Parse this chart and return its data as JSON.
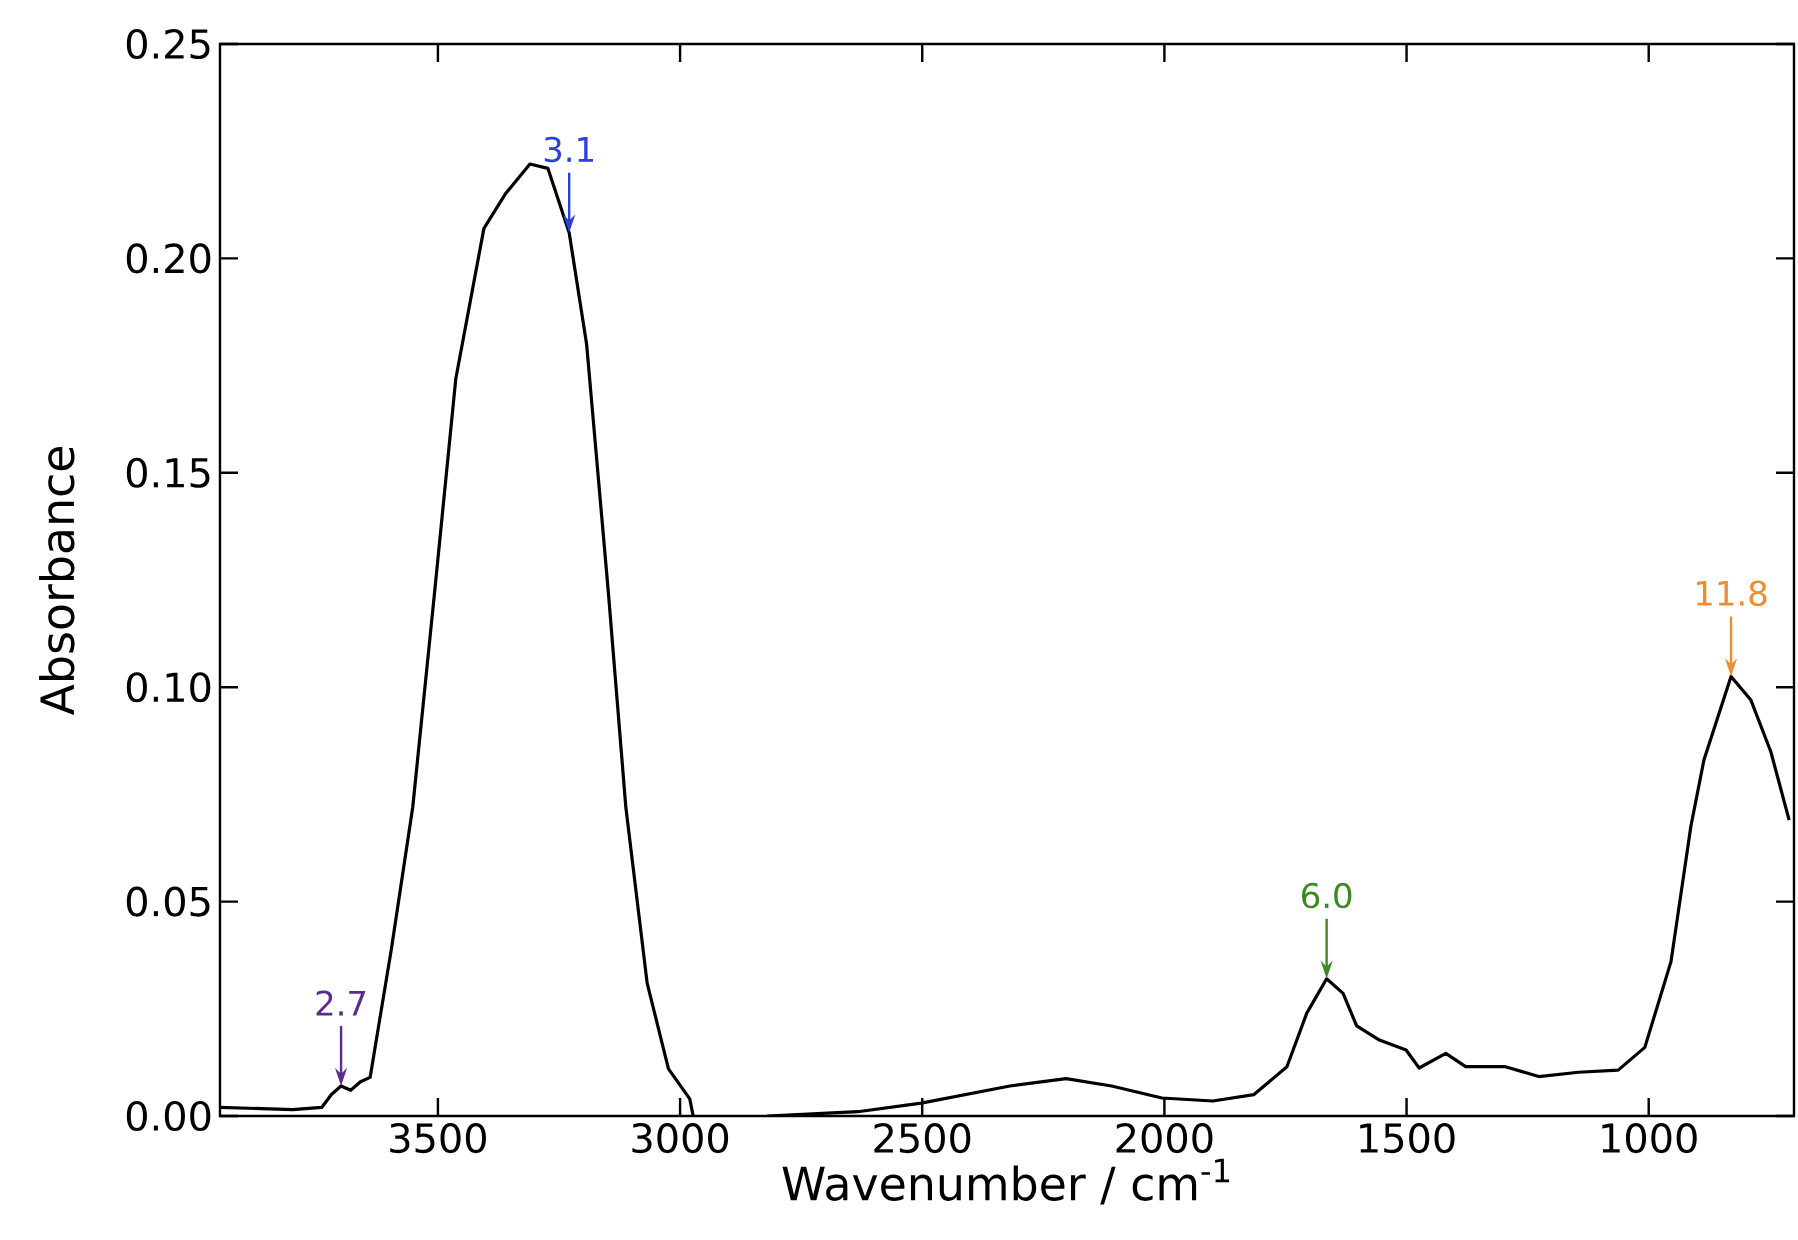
{
  "chart_data": {
    "type": "line",
    "xlabel": "Wavenumber / cm$^{-1}$",
    "ylabel": "Absorbance",
    "xlim": [
      3950,
      700
    ],
    "ylim": [
      0,
      0.25
    ],
    "xticks": [
      3500,
      3000,
      2500,
      2000,
      1500,
      1000
    ],
    "yticks": [
      {
        "value": 0,
        "label": "0.00"
      },
      {
        "value": 0.05,
        "label": "0.05"
      },
      {
        "value": 0.1,
        "label": "0.10"
      },
      {
        "value": 0.15,
        "label": "0.15"
      },
      {
        "value": 0.2,
        "label": "0.20"
      },
      {
        "value": 0.25,
        "label": "0.25"
      }
    ],
    "grid": false,
    "marker": "none",
    "line_style": "solid",
    "annotations": [
      {
        "text": "2.7",
        "x": 3700,
        "y": 0.007
      },
      {
        "text": "3.1",
        "x": 3229,
        "y": 0.206
      },
      {
        "text": "6.0",
        "x": 1665,
        "y": 0.032
      },
      {
        "text": "11.8",
        "x": 830,
        "y": 0.1025
      }
    ],
    "series": [
      {
        "color": "#000000",
        "x": [
          3950,
          3800,
          3740,
          3720,
          3700,
          3680,
          3660,
          3640,
          3596,
          3552,
          3507,
          3463,
          3405,
          3361,
          3310,
          3273,
          3229,
          3193,
          3148,
          3112,
          3068,
          3024,
          2980,
          2973,
          2900,
          2820,
          2633,
          2502,
          2319,
          2203,
          2109,
          2005,
          1900,
          1815,
          1747,
          1706,
          1665,
          1631,
          1603,
          1556,
          1501,
          1474,
          1419,
          1378,
          1296,
          1227,
          1145,
          1063,
          1008,
          954,
          913,
          886,
          830,
          789,
          748,
          710
        ],
        "values": [
          0.002,
          0.0015,
          0.002,
          0.005,
          0.007,
          0.006,
          0.008,
          0.009,
          0.039,
          0.072,
          0.122,
          0.172,
          0.207,
          0.215,
          0.222,
          0.221,
          0.206,
          0.18,
          0.122,
          0.072,
          0.031,
          0.011,
          0.004,
          0,
          null,
          0,
          0.001,
          0.003,
          0.007,
          0.0087,
          0.007,
          0.0042,
          0.0035,
          0.005,
          0.0115,
          0.024,
          0.032,
          0.0286,
          0.021,
          0.0177,
          0.0154,
          0.0112,
          0.0146,
          0.0115,
          0.0115,
          0.0092,
          0.0102,
          0.0107,
          0.016,
          0.036,
          0.0675,
          0.083,
          0.1025,
          0.097,
          0.085,
          0.069
        ]
      }
    ]
  }
}
